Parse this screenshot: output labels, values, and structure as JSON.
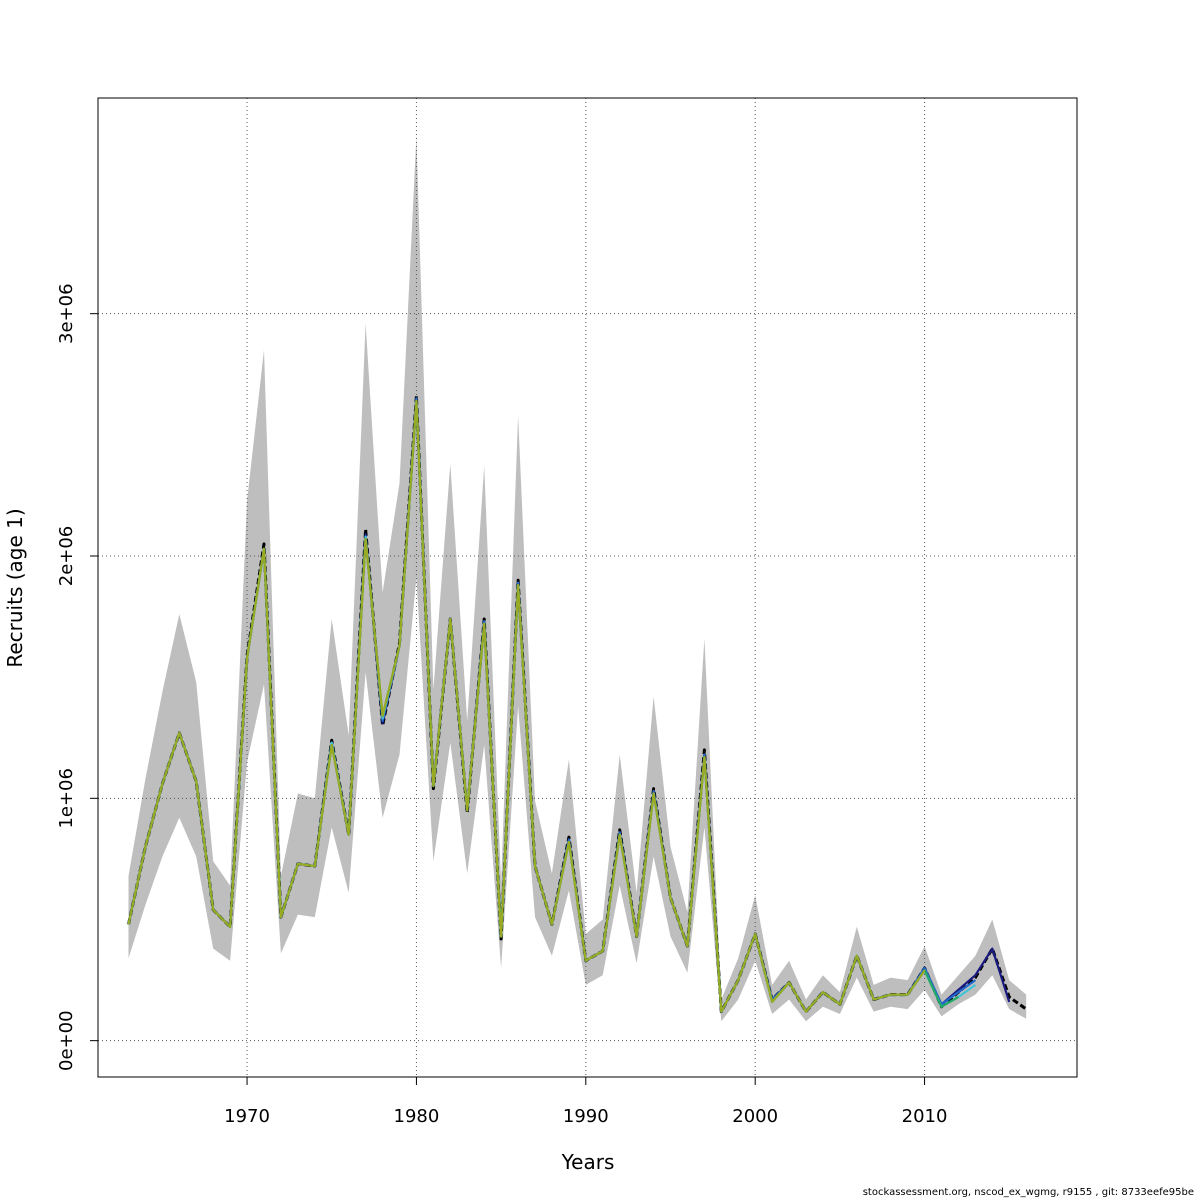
{
  "chart_data": {
    "type": "line",
    "title": "",
    "xlabel": "Years",
    "ylabel": "Recruits (age 1)",
    "xlim": [
      1961.2,
      2019.0
    ],
    "ylim": [
      -150000,
      3890000
    ],
    "x_ticks": [
      1970,
      1980,
      1990,
      2000,
      2010
    ],
    "x_tick_labels": [
      "1970",
      "1980",
      "1990",
      "2000",
      "2010"
    ],
    "y_ticks": [
      0,
      1000000,
      2000000,
      3000000
    ],
    "y_tick_labels": [
      "0e+00",
      "1e+06",
      "2e+06",
      "3e+06"
    ],
    "grid": true,
    "band_color": "#bebebe",
    "x": [
      1963,
      1964,
      1965,
      1966,
      1967,
      1968,
      1969,
      1970,
      1971,
      1972,
      1973,
      1974,
      1975,
      1976,
      1977,
      1978,
      1979,
      1980,
      1981,
      1982,
      1983,
      1984,
      1985,
      1986,
      1987,
      1988,
      1989,
      1990,
      1991,
      1992,
      1993,
      1994,
      1995,
      1996,
      1997,
      1998,
      1999,
      2000,
      2001,
      2002,
      2003,
      2004,
      2005,
      2006,
      2007,
      2008,
      2009,
      2010,
      2011,
      2012,
      2013,
      2014,
      2015,
      2016
    ],
    "upper": [
      680000,
      1080000,
      1440000,
      1760000,
      1480000,
      740000,
      640000,
      2230000,
      2850000,
      680000,
      1020000,
      1000000,
      1740000,
      1260000,
      2960000,
      1850000,
      2300000,
      3730000,
      1450000,
      2380000,
      1320000,
      2370000,
      650000,
      2580000,
      990000,
      690000,
      1160000,
      440000,
      500000,
      1180000,
      610000,
      1420000,
      800000,
      530000,
      1660000,
      170000,
      340000,
      600000,
      230000,
      330000,
      170000,
      270000,
      200000,
      470000,
      230000,
      260000,
      250000,
      390000,
      190000,
      270000,
      350000,
      500000,
      250000,
      190000
    ],
    "lower": [
      340000,
      560000,
      760000,
      920000,
      760000,
      380000,
      330000,
      1150000,
      1470000,
      360000,
      520000,
      510000,
      880000,
      610000,
      1520000,
      920000,
      1180000,
      1910000,
      740000,
      1230000,
      690000,
      1220000,
      300000,
      1380000,
      510000,
      350000,
      620000,
      230000,
      270000,
      640000,
      320000,
      760000,
      430000,
      280000,
      880000,
      80000,
      170000,
      330000,
      110000,
      170000,
      80000,
      140000,
      110000,
      260000,
      120000,
      140000,
      130000,
      210000,
      100000,
      150000,
      190000,
      270000,
      130000,
      90000
    ],
    "series": [
      {
        "name": "",
        "color": "#000000",
        "dashed": true,
        "values": [
          480000,
          800000,
          1060000,
          1270000,
          1070000,
          540000,
          470000,
          1590000,
          2050000,
          510000,
          730000,
          720000,
          1240000,
          850000,
          2110000,
          1300000,
          1640000,
          2660000,
          1040000,
          1740000,
          940000,
          1740000,
          420000,
          1900000,
          720000,
          480000,
          840000,
          330000,
          370000,
          870000,
          430000,
          1040000,
          590000,
          390000,
          1200000,
          120000,
          250000,
          440000,
          170000,
          240000,
          120000,
          200000,
          150000,
          350000,
          170000,
          190000,
          190000,
          300000,
          140000,
          200000,
          260000,
          380000,
          180000,
          130000
        ]
      },
      {
        "name": "",
        "color": "#1a1a80",
        "values": [
          480000,
          800000,
          1060000,
          1270000,
          1070000,
          540000,
          470000,
          1580000,
          2030000,
          510000,
          730000,
          720000,
          1230000,
          850000,
          2090000,
          1310000,
          1630000,
          2650000,
          1050000,
          1740000,
          950000,
          1730000,
          430000,
          1890000,
          720000,
          480000,
          830000,
          330000,
          370000,
          860000,
          430000,
          1030000,
          590000,
          390000,
          1180000,
          120000,
          250000,
          440000,
          170000,
          240000,
          120000,
          200000,
          150000,
          350000,
          170000,
          190000,
          190000,
          300000,
          150000,
          210000,
          270000,
          380000,
          160000,
          null
        ]
      },
      {
        "name": "",
        "color": "#2266cc",
        "values": [
          480000,
          800000,
          1060000,
          1270000,
          1070000,
          540000,
          470000,
          1580000,
          2030000,
          510000,
          730000,
          720000,
          1230000,
          850000,
          2080000,
          1320000,
          1630000,
          2650000,
          1050000,
          1740000,
          950000,
          1730000,
          430000,
          1890000,
          720000,
          480000,
          830000,
          330000,
          370000,
          860000,
          430000,
          1030000,
          590000,
          390000,
          1180000,
          120000,
          250000,
          440000,
          170000,
          240000,
          120000,
          200000,
          150000,
          350000,
          170000,
          190000,
          190000,
          300000,
          150000,
          200000,
          250000,
          null,
          null,
          null
        ]
      },
      {
        "name": "",
        "color": "#40c4d8",
        "values": [
          480000,
          800000,
          1060000,
          1270000,
          1070000,
          540000,
          470000,
          1580000,
          2030000,
          510000,
          730000,
          720000,
          1230000,
          850000,
          2080000,
          1330000,
          1630000,
          2640000,
          1050000,
          1740000,
          950000,
          1720000,
          430000,
          1880000,
          720000,
          480000,
          820000,
          330000,
          370000,
          850000,
          430000,
          1020000,
          590000,
          390000,
          1170000,
          120000,
          250000,
          440000,
          160000,
          240000,
          120000,
          200000,
          150000,
          350000,
          170000,
          190000,
          190000,
          290000,
          140000,
          180000,
          230000,
          null,
          null,
          null
        ]
      },
      {
        "name": "",
        "color": "#22aa66",
        "values": [
          480000,
          800000,
          1060000,
          1270000,
          1070000,
          540000,
          470000,
          1580000,
          2030000,
          510000,
          730000,
          720000,
          1220000,
          850000,
          2070000,
          1340000,
          1630000,
          2640000,
          1050000,
          1740000,
          950000,
          1720000,
          430000,
          1880000,
          720000,
          480000,
          820000,
          330000,
          370000,
          850000,
          430000,
          1020000,
          590000,
          390000,
          1170000,
          120000,
          250000,
          440000,
          160000,
          240000,
          120000,
          200000,
          150000,
          350000,
          170000,
          190000,
          190000,
          290000,
          140000,
          180000,
          null,
          null,
          null,
          null
        ]
      },
      {
        "name": "",
        "color": "#9aaa22",
        "values": [
          480000,
          800000,
          1060000,
          1270000,
          1070000,
          540000,
          470000,
          1580000,
          2030000,
          510000,
          730000,
          720000,
          1220000,
          850000,
          2070000,
          1340000,
          1630000,
          2640000,
          1050000,
          1740000,
          950000,
          1720000,
          430000,
          1880000,
          720000,
          480000,
          820000,
          330000,
          370000,
          850000,
          430000,
          1020000,
          590000,
          390000,
          1170000,
          120000,
          250000,
          440000,
          160000,
          240000,
          120000,
          200000,
          150000,
          350000,
          170000,
          190000,
          190000,
          290000,
          null,
          null,
          null,
          null,
          null,
          null
        ]
      }
    ]
  },
  "footer": "stockassessment.org, nscod_ex_wgmg, r9155 , git: 8733eefe95be"
}
